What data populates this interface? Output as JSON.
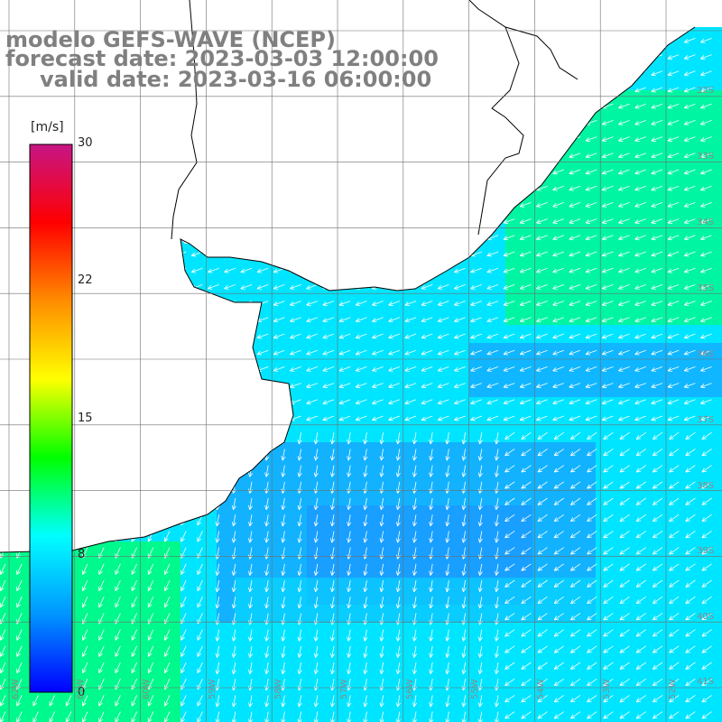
{
  "title": {
    "line1": "modelo GEFS-WAVE (NCEP)",
    "line2": "forecast date: 2023-03-03 12:00:00",
    "line3": "valid date: 2023-03-16 06:00:00"
  },
  "colorbar": {
    "unit": "[m/s]",
    "min": 0,
    "max": 30,
    "ticks": [
      {
        "value": 30,
        "label": "30"
      },
      {
        "value": 22,
        "label": "22"
      },
      {
        "value": 15,
        "label": "15"
      },
      {
        "value": 8,
        "label": "8"
      },
      {
        "value": 0,
        "label": "0"
      }
    ],
    "colors": [
      "#0000ff",
      "#0096ff",
      "#00ffff",
      "#00ff00",
      "#ffff00",
      "#ff8c00",
      "#ff0000",
      "#c71585"
    ]
  },
  "lat_labels": [
    "32S",
    "33S",
    "34S",
    "35S",
    "36S",
    "37S",
    "38S",
    "39S",
    "40S",
    "41S"
  ],
  "lon_labels": [
    "62W",
    "61W",
    "60W",
    "59W",
    "58W",
    "57W",
    "56W",
    "55W",
    "54W",
    "53W",
    "52W",
    "51W"
  ],
  "colors": {
    "land": "#ffffff",
    "grid": "#6e6e6e",
    "coast": "#000000",
    "arrow": "#ffffff",
    "wind_slow": "#1e90ff",
    "wind_mid": "#00e5ff",
    "wind_fast": "#00ff66"
  }
}
